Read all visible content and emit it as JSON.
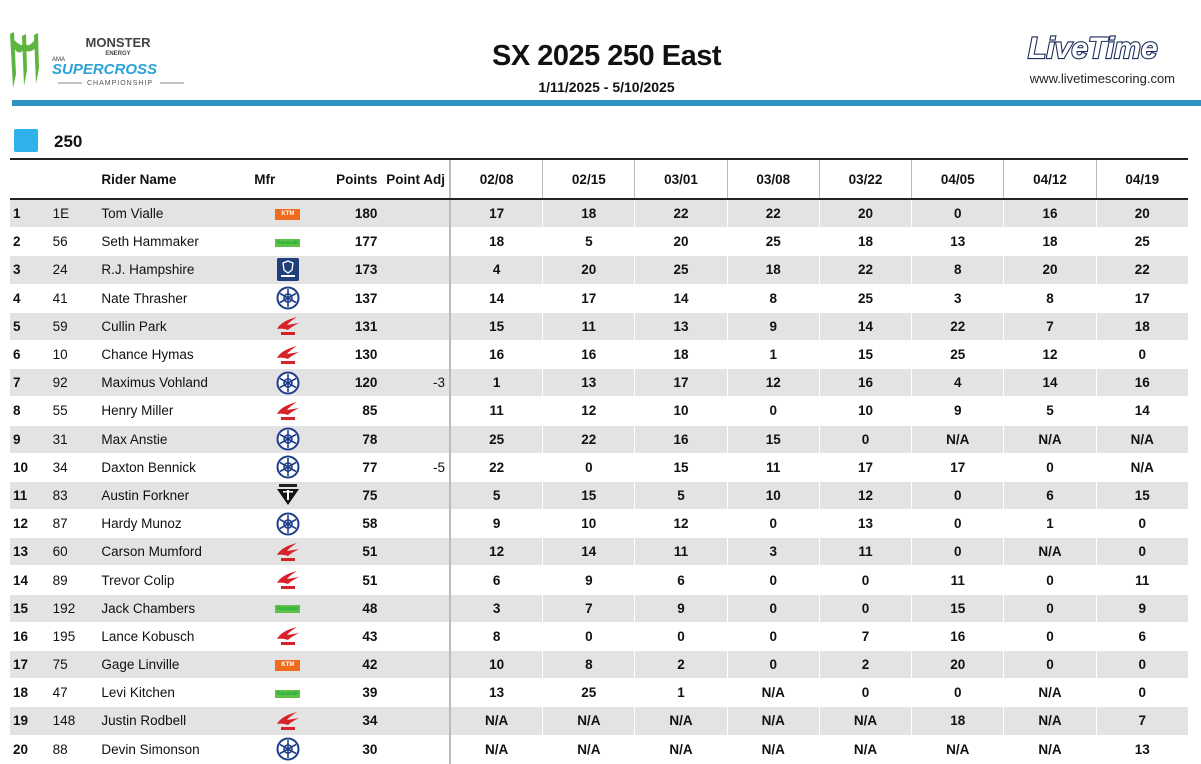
{
  "header": {
    "brand_monster": "MONSTER",
    "brand_energy": "ENERGY",
    "brand_ama": "AMA",
    "brand_supercross": "SUPERCROSS",
    "brand_championship": "CHAMPIONSHIP",
    "title": "SX 2025 250 East",
    "dates": "1/11/2025 - 5/10/2025",
    "livetime_logo": "LiveTime",
    "url": "www.livetimescoring.com"
  },
  "class_label": "250",
  "colors": {
    "accent_bar": "#2d93c2",
    "class_square": "#2db2ea",
    "ktm": "#f06c1c",
    "kawasaki": "#5fc04a",
    "honda": "#d8222a",
    "yamaha": "#1d3d8a",
    "husqvarna": "#1f3f7a"
  },
  "columns": {
    "pos": "",
    "num": "",
    "name": "Rider Name",
    "mfr": "Mfr",
    "points": "Points",
    "adj": "Point Adj",
    "races": [
      "02/08",
      "02/15",
      "03/01",
      "03/08",
      "03/22",
      "04/05",
      "04/12",
      "04/19"
    ]
  },
  "rows": [
    {
      "pos": "1",
      "num": "1E",
      "name": "Tom Vialle",
      "mfr": "ktm",
      "points": "180",
      "adj": "",
      "races": [
        "17",
        "18",
        "22",
        "22",
        "20",
        "0",
        "16",
        "20"
      ]
    },
    {
      "pos": "2",
      "num": "56",
      "name": "Seth Hammaker",
      "mfr": "kawasaki",
      "points": "177",
      "adj": "",
      "races": [
        "18",
        "5",
        "20",
        "25",
        "18",
        "13",
        "18",
        "25"
      ]
    },
    {
      "pos": "3",
      "num": "24",
      "name": "R.J. Hampshire",
      "mfr": "husqvarna",
      "points": "173",
      "adj": "",
      "races": [
        "4",
        "20",
        "25",
        "18",
        "22",
        "8",
        "20",
        "22"
      ]
    },
    {
      "pos": "4",
      "num": "41",
      "name": "Nate Thrasher",
      "mfr": "yamaha",
      "points": "137",
      "adj": "",
      "races": [
        "14",
        "17",
        "14",
        "8",
        "25",
        "3",
        "8",
        "17"
      ]
    },
    {
      "pos": "5",
      "num": "59",
      "name": "Cullin Park",
      "mfr": "honda",
      "points": "131",
      "adj": "",
      "races": [
        "15",
        "11",
        "13",
        "9",
        "14",
        "22",
        "7",
        "18"
      ]
    },
    {
      "pos": "6",
      "num": "10",
      "name": "Chance Hymas",
      "mfr": "honda",
      "points": "130",
      "adj": "",
      "races": [
        "16",
        "16",
        "18",
        "1",
        "15",
        "25",
        "12",
        "0"
      ]
    },
    {
      "pos": "7",
      "num": "92",
      "name": "Maximus Vohland",
      "mfr": "yamaha",
      "points": "120",
      "adj": "-3",
      "races": [
        "1",
        "13",
        "17",
        "12",
        "16",
        "4",
        "14",
        "16"
      ]
    },
    {
      "pos": "8",
      "num": "55",
      "name": "Henry Miller",
      "mfr": "honda",
      "points": "85",
      "adj": "",
      "races": [
        "11",
        "12",
        "10",
        "0",
        "10",
        "9",
        "5",
        "14"
      ]
    },
    {
      "pos": "9",
      "num": "31",
      "name": "Max Anstie",
      "mfr": "yamaha",
      "points": "78",
      "adj": "",
      "races": [
        "25",
        "22",
        "16",
        "15",
        "0",
        "N/A",
        "N/A",
        "N/A"
      ]
    },
    {
      "pos": "10",
      "num": "34",
      "name": "Daxton Bennick",
      "mfr": "yamaha",
      "points": "77",
      "adj": "-5",
      "races": [
        "22",
        "0",
        "15",
        "11",
        "17",
        "17",
        "0",
        "N/A"
      ]
    },
    {
      "pos": "11",
      "num": "83",
      "name": "Austin Forkner",
      "mfr": "triumph",
      "points": "75",
      "adj": "",
      "races": [
        "5",
        "15",
        "5",
        "10",
        "12",
        "0",
        "6",
        "15"
      ]
    },
    {
      "pos": "12",
      "num": "87",
      "name": "Hardy Munoz",
      "mfr": "yamaha",
      "points": "58",
      "adj": "",
      "races": [
        "9",
        "10",
        "12",
        "0",
        "13",
        "0",
        "1",
        "0"
      ]
    },
    {
      "pos": "13",
      "num": "60",
      "name": "Carson Mumford",
      "mfr": "honda",
      "points": "51",
      "adj": "",
      "races": [
        "12",
        "14",
        "11",
        "3",
        "11",
        "0",
        "N/A",
        "0"
      ]
    },
    {
      "pos": "14",
      "num": "89",
      "name": "Trevor Colip",
      "mfr": "honda",
      "points": "51",
      "adj": "",
      "races": [
        "6",
        "9",
        "6",
        "0",
        "0",
        "11",
        "0",
        "11"
      ]
    },
    {
      "pos": "15",
      "num": "192",
      "name": "Jack Chambers",
      "mfr": "kawasaki",
      "points": "48",
      "adj": "",
      "races": [
        "3",
        "7",
        "9",
        "0",
        "0",
        "15",
        "0",
        "9"
      ]
    },
    {
      "pos": "16",
      "num": "195",
      "name": "Lance Kobusch",
      "mfr": "honda",
      "points": "43",
      "adj": "",
      "races": [
        "8",
        "0",
        "0",
        "0",
        "7",
        "16",
        "0",
        "6"
      ]
    },
    {
      "pos": "17",
      "num": "75",
      "name": "Gage Linville",
      "mfr": "ktm",
      "points": "42",
      "adj": "",
      "races": [
        "10",
        "8",
        "2",
        "0",
        "2",
        "20",
        "0",
        "0"
      ]
    },
    {
      "pos": "18",
      "num": "47",
      "name": "Levi Kitchen",
      "mfr": "kawasaki",
      "points": "39",
      "adj": "",
      "races": [
        "13",
        "25",
        "1",
        "N/A",
        "0",
        "0",
        "N/A",
        "0"
      ]
    },
    {
      "pos": "19",
      "num": "148",
      "name": "Justin Rodbell",
      "mfr": "honda",
      "points": "34",
      "adj": "",
      "races": [
        "N/A",
        "N/A",
        "N/A",
        "N/A",
        "N/A",
        "18",
        "N/A",
        "7"
      ]
    },
    {
      "pos": "20",
      "num": "88",
      "name": "Devin Simonson",
      "mfr": "yamaha",
      "points": "30",
      "adj": "",
      "races": [
        "N/A",
        "N/A",
        "N/A",
        "N/A",
        "N/A",
        "N/A",
        "N/A",
        "13"
      ]
    }
  ]
}
